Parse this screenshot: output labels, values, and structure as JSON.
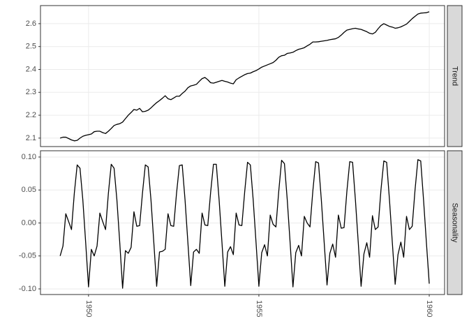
{
  "chart_data": {
    "type": "line",
    "x": [
      1949.167,
      1949.25,
      1949.333,
      1949.417,
      1949.5,
      1949.583,
      1949.667,
      1949.75,
      1949.833,
      1949.917,
      1950,
      1950.083,
      1950.167,
      1950.25,
      1950.333,
      1950.417,
      1950.5,
      1950.583,
      1950.667,
      1950.75,
      1950.833,
      1950.917,
      1951,
      1951.083,
      1951.167,
      1951.25,
      1951.333,
      1951.417,
      1951.5,
      1951.583,
      1951.667,
      1951.75,
      1951.833,
      1951.917,
      1952,
      1952.083,
      1952.167,
      1952.25,
      1952.333,
      1952.417,
      1952.5,
      1952.583,
      1952.667,
      1952.75,
      1952.833,
      1952.917,
      1953,
      1953.083,
      1953.167,
      1953.25,
      1953.333,
      1953.417,
      1953.5,
      1953.583,
      1953.667,
      1953.75,
      1953.833,
      1953.917,
      1954,
      1954.083,
      1954.167,
      1954.25,
      1954.333,
      1954.417,
      1954.5,
      1954.583,
      1954.667,
      1954.75,
      1954.833,
      1954.917,
      1955,
      1955.083,
      1955.167,
      1955.25,
      1955.333,
      1955.417,
      1955.5,
      1955.583,
      1955.667,
      1955.75,
      1955.833,
      1955.917,
      1956,
      1956.083,
      1956.167,
      1956.25,
      1956.333,
      1956.417,
      1956.5,
      1956.583,
      1956.667,
      1956.75,
      1956.833,
      1956.917,
      1957,
      1957.083,
      1957.167,
      1957.25,
      1957.333,
      1957.417,
      1957.5,
      1957.583,
      1957.667,
      1957.75,
      1957.833,
      1957.917,
      1958,
      1958.083,
      1958.167,
      1958.25,
      1958.333,
      1958.417,
      1958.5,
      1958.583,
      1958.667,
      1958.75,
      1958.833,
      1958.917,
      1959,
      1959.083,
      1959.167,
      1959.25,
      1959.333,
      1959.417,
      1959.5,
      1959.583,
      1959.667,
      1959.75,
      1959.833,
      1959.917,
      1960
    ],
    "xlim": [
      1948.59,
      1960.45
    ],
    "xticks": [
      1950,
      1955,
      1960
    ],
    "facets": [
      {
        "label": "Trend",
        "ylim": [
          2.063,
          2.679
        ],
        "yticks": [
          2.1,
          2.2,
          2.3,
          2.4,
          2.5,
          2.6
        ],
        "series": [
          {
            "color": "#000000",
            "values": [
              2.1,
              2.104,
              2.104,
              2.098,
              2.092,
              2.088,
              2.09,
              2.1,
              2.108,
              2.112,
              2.115,
              2.118,
              2.128,
              2.13,
              2.13,
              2.124,
              2.12,
              2.13,
              2.142,
              2.155,
              2.16,
              2.163,
              2.17,
              2.185,
              2.2,
              2.212,
              2.225,
              2.222,
              2.23,
              2.215,
              2.217,
              2.222,
              2.232,
              2.244,
              2.255,
              2.264,
              2.274,
              2.285,
              2.272,
              2.268,
              2.275,
              2.283,
              2.283,
              2.295,
              2.305,
              2.32,
              2.328,
              2.331,
              2.335,
              2.348,
              2.36,
              2.365,
              2.355,
              2.342,
              2.34,
              2.344,
              2.348,
              2.352,
              2.348,
              2.345,
              2.34,
              2.337,
              2.355,
              2.363,
              2.37,
              2.377,
              2.382,
              2.384,
              2.39,
              2.395,
              2.402,
              2.41,
              2.415,
              2.42,
              2.425,
              2.43,
              2.44,
              2.453,
              2.46,
              2.462,
              2.47,
              2.472,
              2.475,
              2.482,
              2.488,
              2.491,
              2.495,
              2.503,
              2.51,
              2.52,
              2.52,
              2.521,
              2.523,
              2.525,
              2.527,
              2.53,
              2.532,
              2.534,
              2.54,
              2.55,
              2.562,
              2.572,
              2.575,
              2.578,
              2.58,
              2.577,
              2.575,
              2.57,
              2.565,
              2.558,
              2.555,
              2.562,
              2.578,
              2.592,
              2.6,
              2.594,
              2.588,
              2.585,
              2.58,
              2.582,
              2.586,
              2.592,
              2.598,
              2.61,
              2.622,
              2.632,
              2.642,
              2.646,
              2.647,
              2.648,
              2.652
            ]
          }
        ]
      },
      {
        "label": "Seasonality",
        "ylim": [
          -0.1085,
          0.1095
        ],
        "yticks": [
          {
            "value": -0.1,
            "label": "-0.10"
          },
          {
            "value": -0.05,
            "label": "-0.05"
          },
          {
            "value": 0,
            "label": "0.00"
          },
          {
            "value": 0.05,
            "label": "0.05"
          },
          {
            "value": 0.1,
            "label": "0.10"
          }
        ],
        "series": [
          {
            "color": "#000000",
            "values": [
              -0.05,
              -0.035,
              0.014,
              0.002,
              -0.01,
              0.045,
              0.088,
              0.083,
              0.035,
              -0.03,
              -0.097,
              -0.04,
              -0.05,
              -0.035,
              0.015,
              0.002,
              -0.01,
              0.045,
              0.089,
              0.083,
              0.035,
              -0.03,
              -0.099,
              -0.042,
              -0.046,
              -0.037,
              0.017,
              -0.005,
              -0.004,
              0.045,
              0.088,
              0.085,
              0.035,
              -0.03,
              -0.096,
              -0.044,
              -0.043,
              -0.04,
              0.014,
              -0.004,
              -0.005,
              0.045,
              0.087,
              0.088,
              0.035,
              -0.03,
              -0.095,
              -0.044,
              -0.04,
              -0.046,
              0.015,
              -0.003,
              -0.004,
              0.046,
              0.089,
              0.089,
              0.035,
              -0.03,
              -0.096,
              -0.044,
              -0.036,
              -0.048,
              0.015,
              -0.003,
              -0.004,
              0.047,
              0.092,
              0.088,
              0.035,
              -0.03,
              -0.096,
              -0.045,
              -0.033,
              -0.05,
              0.012,
              -0.002,
              -0.006,
              0.048,
              0.095,
              0.09,
              0.035,
              -0.03,
              -0.097,
              -0.045,
              -0.034,
              -0.05,
              0.01,
              0.0,
              -0.006,
              0.048,
              0.093,
              0.091,
              0.035,
              -0.03,
              -0.094,
              -0.046,
              -0.032,
              -0.052,
              0.012,
              -0.008,
              -0.007,
              0.048,
              0.093,
              0.092,
              0.035,
              -0.03,
              -0.096,
              -0.047,
              -0.03,
              -0.052,
              0.011,
              -0.01,
              -0.006,
              0.05,
              0.094,
              0.092,
              0.035,
              -0.03,
              -0.093,
              -0.048,
              -0.029,
              -0.052,
              0.01,
              -0.01,
              -0.005,
              0.05,
              0.096,
              0.094,
              0.035,
              -0.03,
              -0.092
            ]
          }
        ]
      }
    ]
  }
}
